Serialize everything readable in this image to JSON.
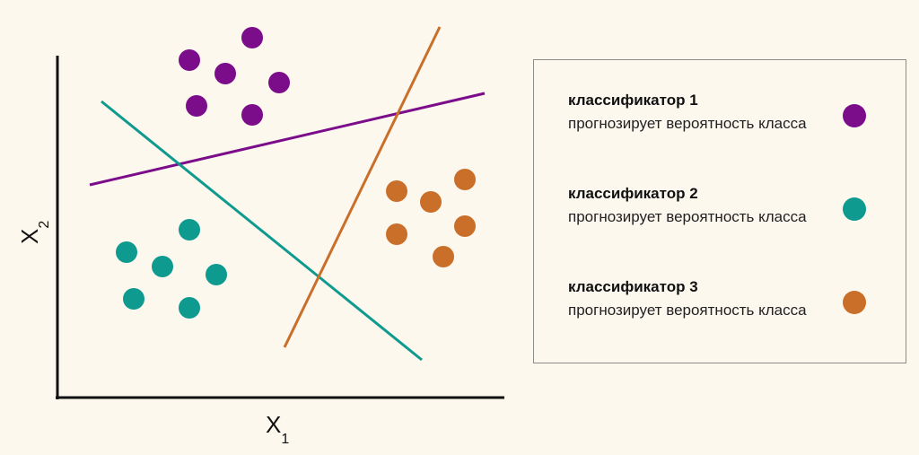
{
  "diagram": {
    "x_axis_label": "X",
    "x_axis_subscript": "1",
    "y_axis_label": "X",
    "y_axis_subscript": "2"
  },
  "legend": {
    "items": [
      {
        "title": "классификатор 1",
        "description": "прогнозирует вероятность класса",
        "color": "#7b0c8a"
      },
      {
        "title": "классификатор 2",
        "description": "прогнозирует вероятность класса",
        "color": "#0e9a8f"
      },
      {
        "title": "классификатор 3",
        "description": "прогнозирует вероятность класса",
        "color": "#c96f2a"
      }
    ]
  },
  "colors": {
    "class_1": "#7b0c8a",
    "class_2": "#0e9a8f",
    "class_3": "#c96f2a",
    "axis": "#111111",
    "background": "#fdf8ee"
  }
}
